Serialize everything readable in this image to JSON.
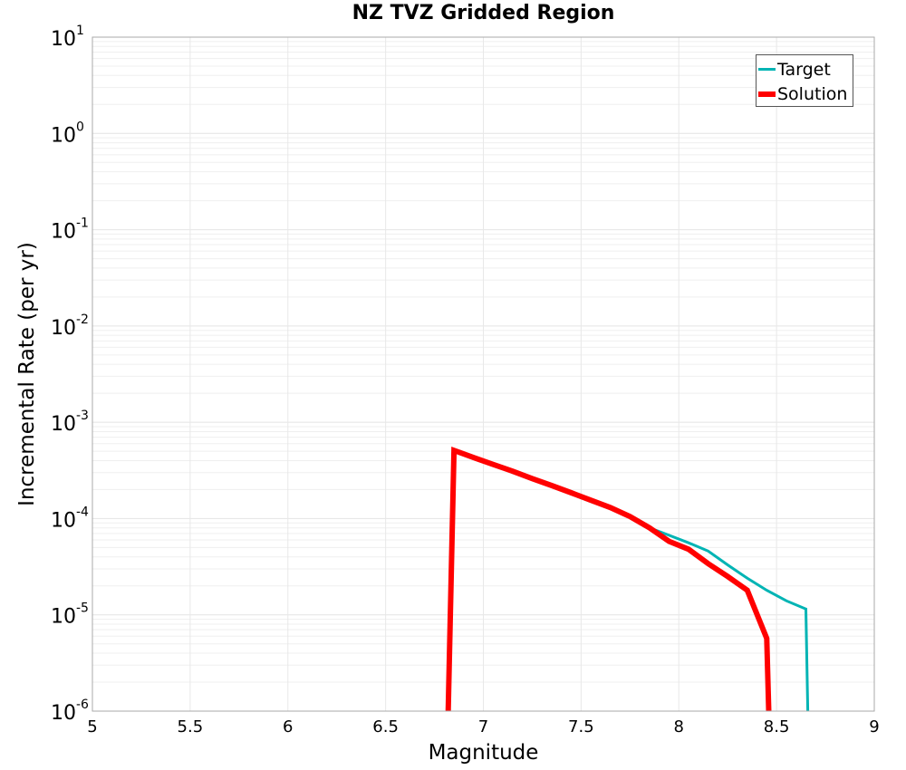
{
  "chart_data": {
    "type": "line",
    "title": "NZ TVZ Gridded Region",
    "xlabel": "Magnitude",
    "ylabel": "Incremental Rate (per yr)",
    "xlim": [
      5,
      9
    ],
    "ylim": [
      1e-06,
      10
    ],
    "yscale": "log",
    "grid": true,
    "legend_position": "upper right",
    "x_ticks": [
      "5",
      "5.5",
      "6",
      "6.5",
      "7",
      "7.5",
      "8",
      "8.5",
      "9"
    ],
    "y_ticks": [
      {
        "base": "10",
        "exp": "1"
      },
      {
        "base": "10",
        "exp": "0"
      },
      {
        "base": "10",
        "exp": "-1"
      },
      {
        "base": "10",
        "exp": "-2"
      },
      {
        "base": "10",
        "exp": "-3"
      },
      {
        "base": "10",
        "exp": "-4"
      },
      {
        "base": "10",
        "exp": "-5"
      },
      {
        "base": "10",
        "exp": "-6"
      }
    ],
    "series": [
      {
        "name": "Target",
        "color": "#00b4b4",
        "line_width": 3,
        "points": [
          [
            6.82,
            1e-06
          ],
          [
            6.85,
            0.0005
          ],
          [
            6.95,
            0.00042
          ],
          [
            7.05,
            0.00036
          ],
          [
            7.15,
            0.0003
          ],
          [
            7.25,
            0.000255
          ],
          [
            7.35,
            0.000215
          ],
          [
            7.45,
            0.00018
          ],
          [
            7.55,
            0.00015
          ],
          [
            7.65,
            0.000127
          ],
          [
            7.75,
            0.000106
          ],
          [
            7.85,
            8e-05
          ],
          [
            7.95,
            6.7e-05
          ],
          [
            8.05,
            5.6e-05
          ],
          [
            8.15,
            4.6e-05
          ],
          [
            8.25,
            3.3e-05
          ],
          [
            8.35,
            2.4e-05
          ],
          [
            8.45,
            1.8e-05
          ],
          [
            8.55,
            1.4e-05
          ],
          [
            8.65,
            1.15e-05
          ],
          [
            8.66,
            1e-06
          ]
        ]
      },
      {
        "name": "Solution",
        "color": "#ff0000",
        "line_width": 6,
        "points": [
          [
            6.82,
            1e-06
          ],
          [
            6.85,
            0.00051
          ],
          [
            6.95,
            0.00043
          ],
          [
            7.05,
            0.000365
          ],
          [
            7.15,
            0.00031
          ],
          [
            7.25,
            0.00026
          ],
          [
            7.35,
            0.00022
          ],
          [
            7.45,
            0.000185
          ],
          [
            7.55,
            0.000155
          ],
          [
            7.65,
            0.00013
          ],
          [
            7.75,
            0.000105
          ],
          [
            7.85,
            8e-05
          ],
          [
            7.95,
            5.8e-05
          ],
          [
            8.05,
            4.8e-05
          ],
          [
            8.15,
            3.4e-05
          ],
          [
            8.25,
            2.5e-05
          ],
          [
            8.35,
            1.8e-05
          ],
          [
            8.45,
            5.7e-06
          ],
          [
            8.46,
            1e-06
          ]
        ]
      }
    ]
  },
  "legend": {
    "items": [
      {
        "label": "Target",
        "color": "#00b4b4"
      },
      {
        "label": "Solution",
        "color": "#ff0000"
      }
    ]
  }
}
